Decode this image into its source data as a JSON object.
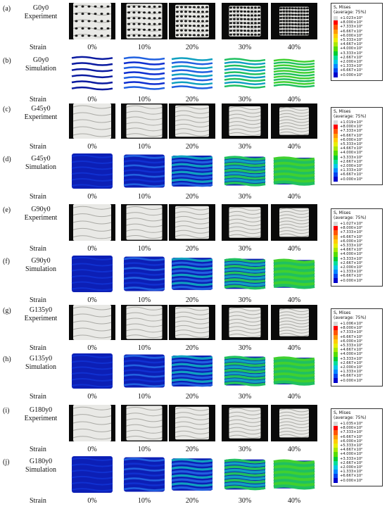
{
  "strains": [
    "0%",
    "10%",
    "20%",
    "30%",
    "40%"
  ],
  "strain_label": "Strain",
  "legend": {
    "title": "S, Mises",
    "subtitle": "(average: 75%)",
    "colors": [
      "#d8d8d8",
      "#ff0000",
      "#ff5500",
      "#ff9900",
      "#ffcc00",
      "#e8ee00",
      "#a8e800",
      "#55dd00",
      "#00cc33",
      "#00dd99",
      "#00c8e6",
      "#0088ff",
      "#0044ee",
      "#0000cc"
    ],
    "groups": [
      {
        "values": [
          "+1.023×10³",
          "+8.000×10²",
          "+7.333×10²",
          "+6.667×10²",
          "+6.000×10²",
          "+5.333×10²",
          "+4.667×10²",
          "+4.000×10²",
          "+3.333×10²",
          "+2.667×10²",
          "+2.000×10²",
          "+1.333×10²",
          "+6.667×10¹",
          "+0.000×10⁰"
        ]
      },
      {
        "values": [
          "+1.019×10³",
          "+8.000×10²",
          "+7.333×10²",
          "+6.667×10²",
          "+6.000×10²",
          "+5.333×10²",
          "+4.667×10²",
          "+4.000×10²",
          "+3.333×10²",
          "+2.667×10²",
          "+2.000×10²",
          "+1.333×10²",
          "+6.667×10¹",
          "+0.000×10⁰"
        ]
      },
      {
        "values": [
          "+1.027×10³",
          "+8.000×10²",
          "+7.333×10²",
          "+6.667×10²",
          "+6.000×10²",
          "+5.333×10²",
          "+4.667×10²",
          "+4.000×10²",
          "+3.333×10²",
          "+2.667×10²",
          "+2.000×10²",
          "+1.333×10²",
          "+6.667×10¹",
          "+0.000×10⁰"
        ]
      },
      {
        "values": [
          "+1.006×10³",
          "+8.000×10²",
          "+7.333×10²",
          "+6.667×10²",
          "+6.000×10²",
          "+5.333×10²",
          "+4.667×10²",
          "+4.000×10²",
          "+3.333×10²",
          "+2.667×10²",
          "+2.000×10²",
          "+1.333×10²",
          "+6.667×10¹",
          "+0.000×10⁰"
        ]
      },
      {
        "values": [
          "+1.035×10³",
          "+8.000×10²",
          "+7.333×10²",
          "+6.667×10²",
          "+6.000×10²",
          "+5.333×10²",
          "+4.667×10²",
          "+4.000×10²",
          "+3.333×10²",
          "+2.667×10²",
          "+2.000×10²",
          "+1.333×10²",
          "+6.667×10¹",
          "+0.000×10⁰"
        ]
      }
    ]
  },
  "rows": [
    {
      "letter": "(a)",
      "name": "G0y0",
      "type": "Experiment"
    },
    {
      "letter": "(b)",
      "name": "G0y0",
      "type": "Simulation"
    },
    {
      "letter": "(c)",
      "name": "G45y0",
      "type": "Experiment"
    },
    {
      "letter": "(d)",
      "name": "G45y0",
      "type": "Simulation"
    },
    {
      "letter": "(e)",
      "name": "G90y0",
      "type": "Experiment"
    },
    {
      "letter": "(f)",
      "name": "G90y0",
      "type": "Simulation"
    },
    {
      "letter": "(g)",
      "name": "G135y0",
      "type": "Experiment"
    },
    {
      "letter": "(h)",
      "name": "G135y0",
      "type": "Simulation"
    },
    {
      "letter": "(i)",
      "name": "G180y0",
      "type": "Experiment"
    },
    {
      "letter": "(j)",
      "name": "G180y0",
      "type": "Simulation"
    }
  ]
}
